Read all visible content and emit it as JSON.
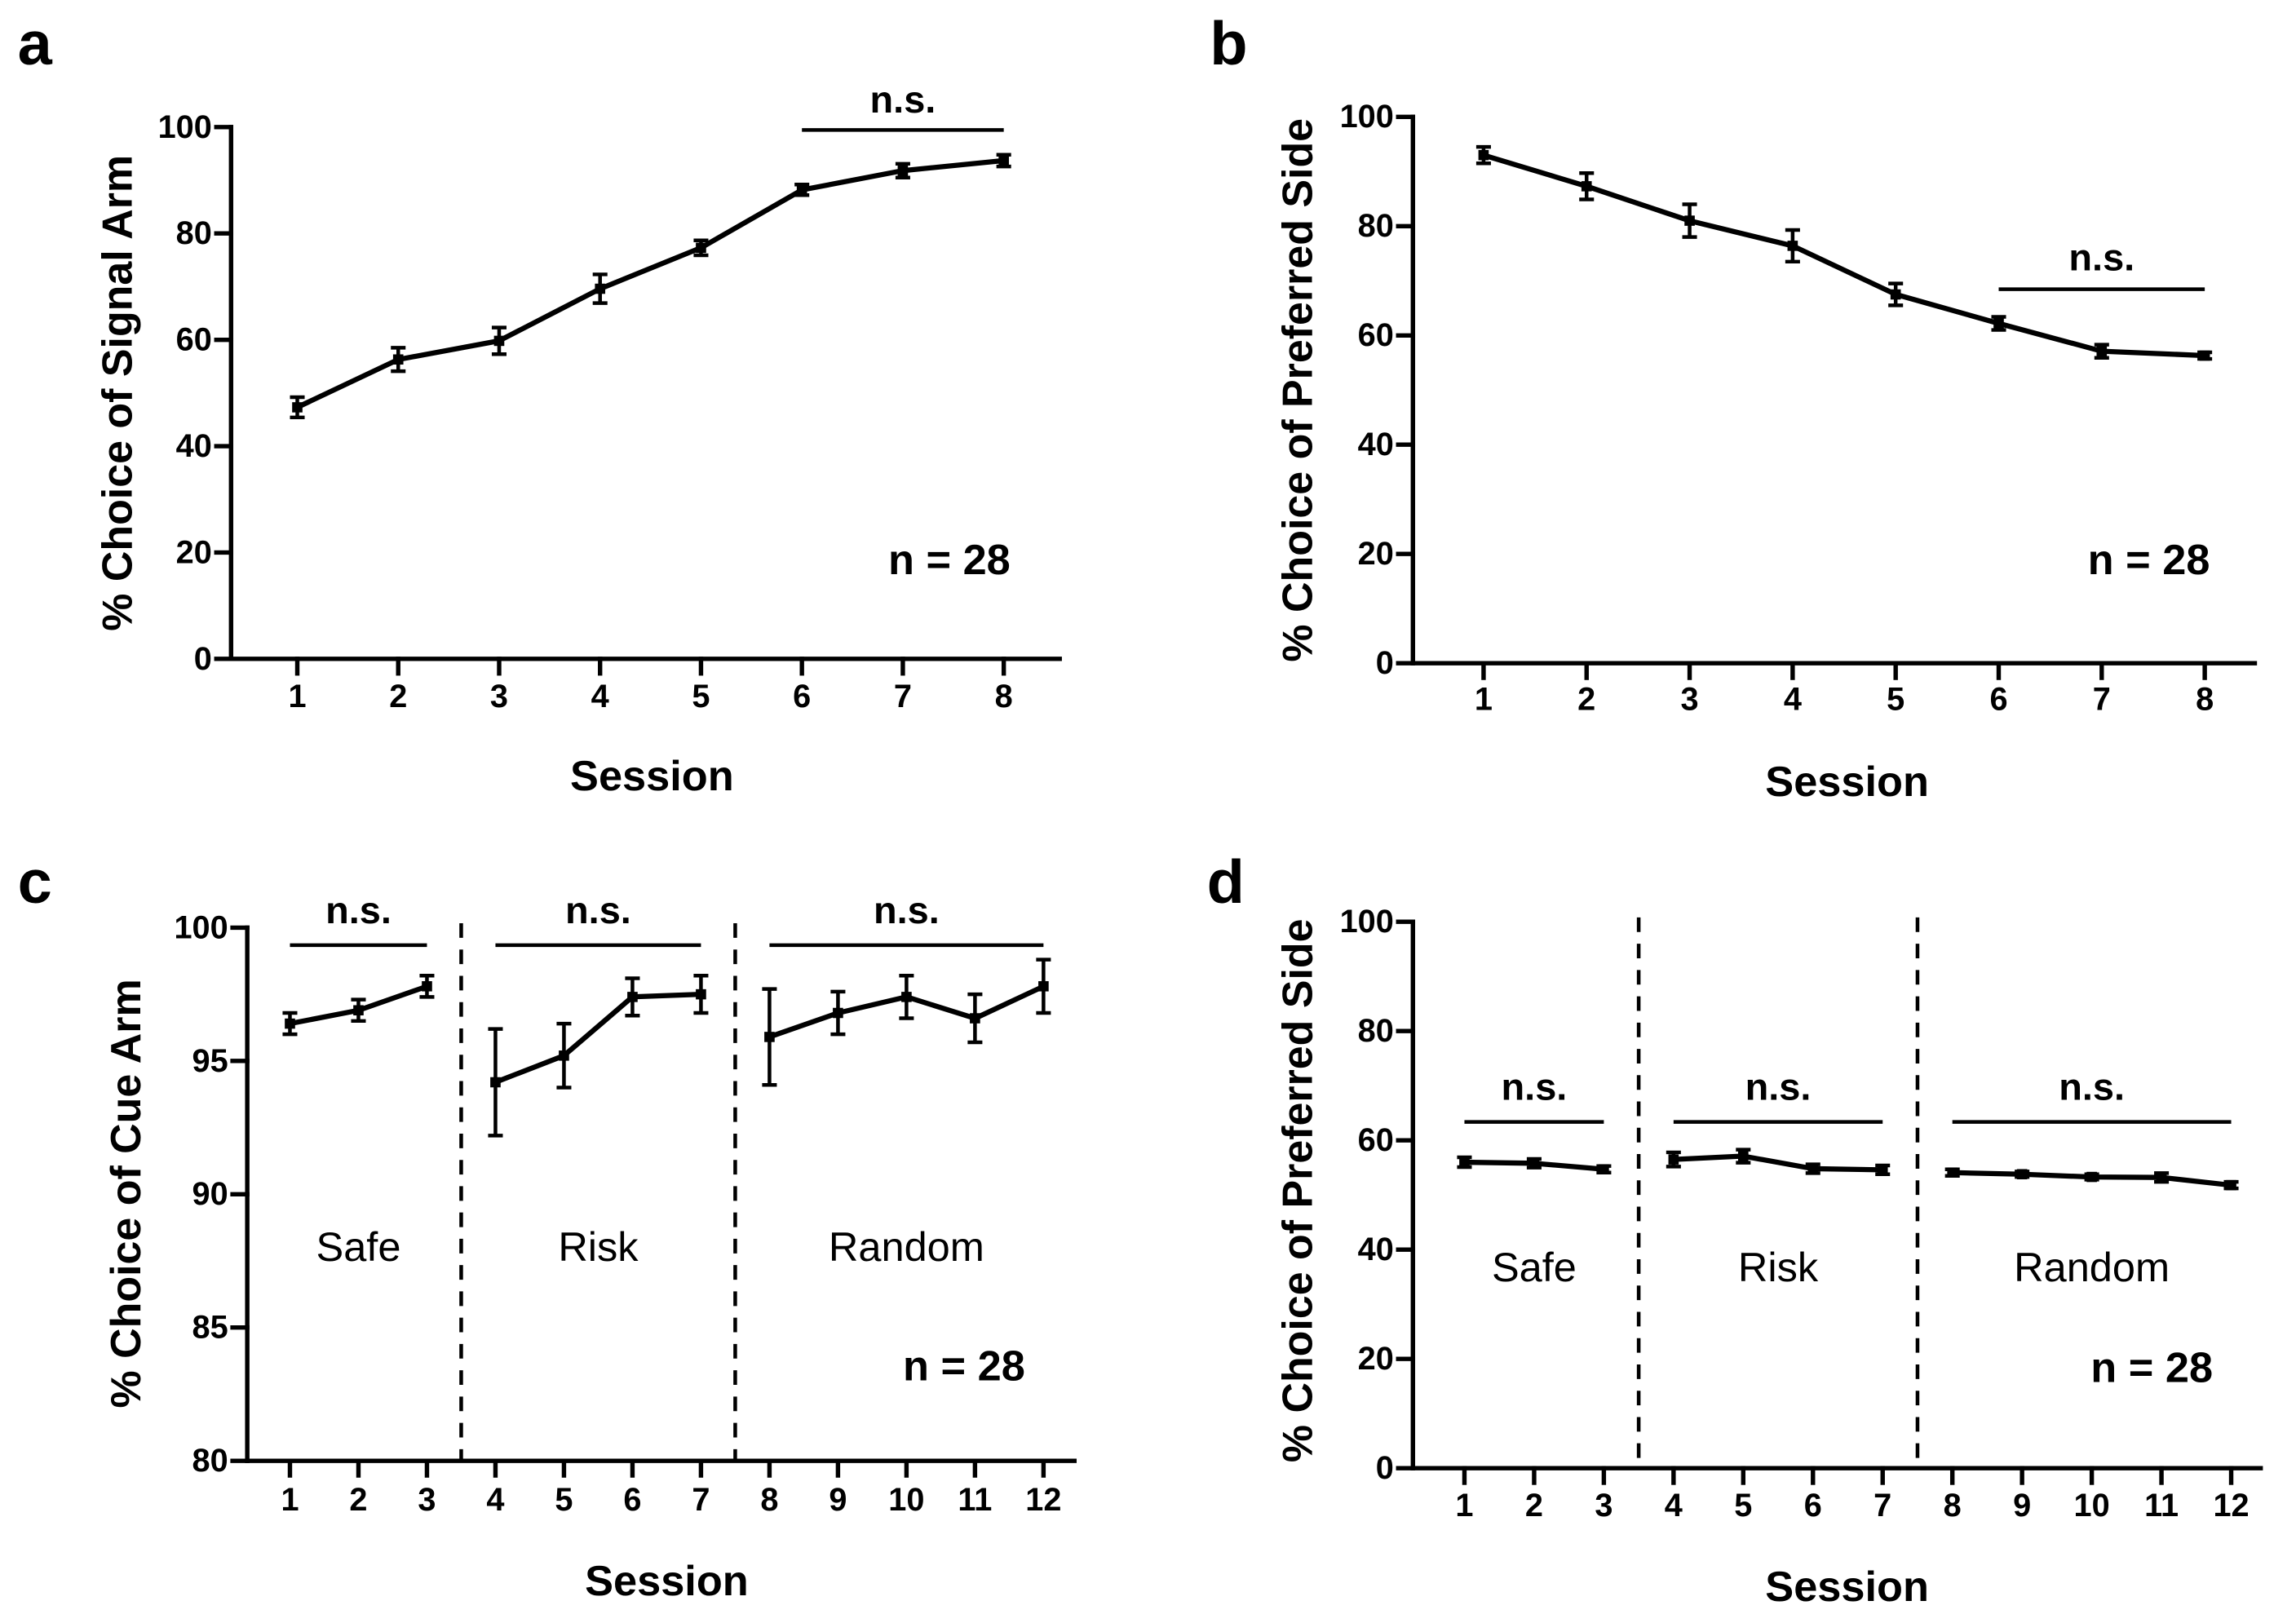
{
  "chart_data": [
    {
      "panel_label": "a",
      "type": "line",
      "xlabel": "Session",
      "ylabel": "% Choice of Signal Arm",
      "x": [
        1,
        2,
        3,
        4,
        5,
        6,
        7,
        8
      ],
      "ylim": [
        0,
        100
      ],
      "yticks": [
        0,
        20,
        40,
        60,
        80,
        100
      ],
      "grid": false,
      "series": [
        {
          "values": [
            47.3,
            56.3,
            59.8,
            69.6,
            77.3,
            88.2,
            91.8,
            93.7
          ],
          "error": [
            1.9,
            2.2,
            2.5,
            2.7,
            1.4,
            1.0,
            1.3,
            1.1
          ]
        }
      ],
      "significance": [
        {
          "label": "n.s.",
          "span": [
            6,
            8
          ]
        }
      ],
      "sample_size": "n = 28"
    },
    {
      "panel_label": "b",
      "type": "line",
      "xlabel": "Session",
      "ylabel": "% Choice of Preferred Side",
      "x": [
        1,
        2,
        3,
        4,
        5,
        6,
        7,
        8
      ],
      "ylim": [
        0,
        100
      ],
      "yticks": [
        0,
        20,
        40,
        60,
        80,
        100
      ],
      "grid": false,
      "series": [
        {
          "values": [
            93.0,
            87.3,
            81.0,
            76.4,
            67.5,
            62.2,
            57.1,
            56.3
          ],
          "error": [
            1.5,
            2.4,
            3.0,
            2.9,
            2.0,
            1.2,
            1.2,
            0.6
          ]
        }
      ],
      "significance": [
        {
          "label": "n.s.",
          "span": [
            6,
            8
          ]
        }
      ],
      "sample_size": "n = 28"
    },
    {
      "panel_label": "c",
      "type": "line",
      "xlabel": "Session",
      "ylabel": "% Choice of Cue Arm",
      "x": [
        1,
        2,
        3,
        4,
        5,
        6,
        7,
        8,
        9,
        10,
        11,
        12
      ],
      "ylim": [
        80,
        100
      ],
      "yticks": [
        80,
        85,
        90,
        95,
        100
      ],
      "grid": false,
      "groups": [
        {
          "label": "Safe",
          "span": [
            1,
            3
          ]
        },
        {
          "label": "Risk",
          "span": [
            4,
            7
          ]
        },
        {
          "label": "Random",
          "span": [
            8,
            12
          ]
        }
      ],
      "series": [
        {
          "values": [
            96.4,
            96.9,
            97.8,
            94.2,
            95.2,
            97.4,
            97.5,
            95.9,
            96.8,
            97.4,
            96.6,
            97.8
          ],
          "error": [
            0.4,
            0.4,
            0.4,
            2.0,
            1.2,
            0.7,
            0.7,
            1.8,
            0.8,
            0.8,
            0.9,
            1.0
          ]
        }
      ],
      "significance": [
        {
          "label": "n.s.",
          "span": [
            1,
            3
          ]
        },
        {
          "label": "n.s.",
          "span": [
            4,
            7
          ]
        },
        {
          "label": "n.s.",
          "span": [
            8,
            12
          ]
        }
      ],
      "sample_size": "n = 28"
    },
    {
      "panel_label": "d",
      "type": "line",
      "xlabel": "Session",
      "ylabel": "% Choice of Preferred Side",
      "x": [
        1,
        2,
        3,
        4,
        5,
        6,
        7,
        8,
        9,
        10,
        11,
        12
      ],
      "ylim": [
        0,
        100
      ],
      "yticks": [
        0,
        20,
        40,
        60,
        80,
        100
      ],
      "grid": false,
      "groups": [
        {
          "label": "Safe",
          "span": [
            1,
            3
          ]
        },
        {
          "label": "Risk",
          "span": [
            4,
            7
          ]
        },
        {
          "label": "Random",
          "span": [
            8,
            12
          ]
        }
      ],
      "series": [
        {
          "values": [
            56.0,
            55.8,
            54.7,
            56.5,
            57.1,
            54.8,
            54.6,
            54.1,
            53.8,
            53.3,
            53.2,
            51.8
          ],
          "error": [
            0.9,
            0.8,
            0.6,
            1.3,
            1.2,
            0.8,
            0.8,
            0.6,
            0.5,
            0.5,
            0.8,
            0.6
          ]
        }
      ],
      "significance": [
        {
          "label": "n.s.",
          "span": [
            1,
            3
          ]
        },
        {
          "label": "n.s.",
          "span": [
            4,
            7
          ]
        },
        {
          "label": "n.s.",
          "span": [
            8,
            12
          ]
        }
      ],
      "sample_size": "n = 28"
    }
  ]
}
